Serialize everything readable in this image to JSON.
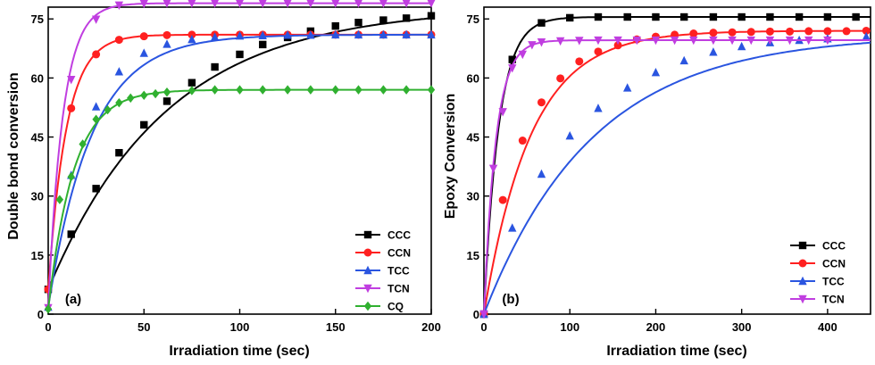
{
  "chart_data": [
    {
      "type": "line",
      "panel_label": "(a)",
      "xlabel": "Irradiation time (sec)",
      "ylabel": "Double bond conversion",
      "xlim": [
        0,
        200
      ],
      "ylim": [
        0,
        78
      ],
      "xticks": [
        0,
        50,
        100,
        150,
        200
      ],
      "yticks": [
        0,
        15,
        30,
        45,
        60,
        75
      ],
      "grid": false,
      "legend_position": "bottom-right",
      "series": [
        {
          "name": "CCC",
          "color": "#000000",
          "marker": "square",
          "k": 0.0162,
          "cmax": 78,
          "x": [
            0,
            12,
            25,
            37,
            50,
            62,
            75,
            87,
            100,
            112,
            125,
            137,
            150,
            162,
            175,
            187,
            200
          ],
          "y": [
            6.3,
            20.3,
            31.9,
            41.0,
            48.1,
            54.1,
            58.8,
            62.8,
            66.0,
            68.5,
            70.3,
            71.9,
            73.2,
            74.1,
            74.7,
            75.2,
            75.8
          ]
        },
        {
          "name": "CCN",
          "color": "#ff2020",
          "marker": "circle",
          "k": 0.105,
          "cmax": 71,
          "x": [
            0,
            12,
            25,
            37,
            50,
            62,
            75,
            87,
            100,
            112,
            125,
            137,
            150,
            162,
            175,
            187,
            200
          ],
          "y": [
            6.3,
            52.3,
            66.0,
            69.7,
            70.6,
            70.9,
            71.0,
            71.0,
            71.0,
            71.0,
            71.0,
            71.0,
            71.0,
            71.0,
            71.0,
            71.0,
            71.0
          ]
        },
        {
          "name": "TCC",
          "color": "#2a55e0",
          "marker": "triangle-up",
          "k": 0.044,
          "cmax": 71,
          "x": [
            0,
            12,
            25,
            37,
            50,
            62,
            75,
            87,
            100,
            112,
            125,
            137,
            150,
            162,
            175,
            187,
            200
          ],
          "y": [
            1.8,
            35.3,
            52.7,
            61.6,
            66.3,
            68.6,
            69.8,
            70.4,
            70.7,
            70.8,
            70.9,
            70.9,
            71.0,
            71.0,
            71.0,
            71.0,
            71.0
          ]
        },
        {
          "name": "TCN",
          "color": "#c03ee0",
          "marker": "triangle-down",
          "k": 0.13,
          "cmax": 79,
          "x": [
            0,
            12,
            25,
            37,
            50,
            62,
            75,
            87,
            100,
            112,
            125,
            137,
            150,
            162,
            175,
            187,
            200
          ],
          "y": [
            1.6,
            59.6,
            74.9,
            78.5,
            78.9,
            79.0,
            79.0,
            79.0,
            79.0,
            79.0,
            79.0,
            79.0,
            79.0,
            79.0,
            79.0,
            79.0,
            79.0
          ]
        },
        {
          "name": "CQ",
          "color": "#30b030",
          "marker": "diamond",
          "k": 0.075,
          "cmax": 57,
          "x": [
            0,
            6,
            12,
            18,
            25,
            31,
            37,
            43,
            50,
            56,
            62,
            75,
            87,
            100,
            112,
            125,
            137,
            150,
            162,
            175,
            187,
            200
          ],
          "y": [
            1.3,
            29.1,
            34.9,
            43.2,
            49.5,
            51.9,
            53.7,
            54.9,
            55.6,
            56.0,
            56.4,
            56.8,
            57.0,
            57.0,
            57.0,
            57.0,
            57.0,
            57.0,
            57.0,
            57.0,
            57.0,
            57.0
          ]
        }
      ]
    },
    {
      "type": "line",
      "panel_label": "(b)",
      "xlabel": "Irradiation time (sec)",
      "ylabel": "Epoxy Conversion",
      "xlim": [
        0,
        450
      ],
      "ylim": [
        0,
        78
      ],
      "xticks": [
        0,
        100,
        200,
        300,
        400
      ],
      "yticks": [
        0,
        15,
        30,
        45,
        60,
        75
      ],
      "grid": false,
      "legend_position": "bottom-right",
      "series": [
        {
          "name": "CCC",
          "color": "#000000",
          "marker": "square",
          "k": 0.058,
          "cmax": 75.5,
          "x": [
            0,
            33,
            67,
            100,
            133,
            167,
            200,
            233,
            267,
            300,
            333,
            367,
            400,
            433
          ],
          "y": [
            0,
            64.7,
            74.0,
            75.3,
            75.5,
            75.5,
            75.5,
            75.5,
            75.5,
            75.5,
            75.5,
            75.5,
            75.5,
            75.5
          ]
        },
        {
          "name": "CCN",
          "color": "#ff2020",
          "marker": "circle",
          "k": 0.0183,
          "cmax": 72,
          "x": [
            0,
            22,
            45,
            67,
            89,
            111,
            133,
            156,
            178,
            200,
            222,
            244,
            267,
            289,
            311,
            333,
            356,
            378,
            400,
            422,
            445
          ],
          "y": [
            0,
            29.0,
            44.1,
            53.8,
            59.9,
            64.2,
            66.7,
            68.3,
            69.8,
            70.5,
            71.0,
            71.3,
            71.5,
            71.6,
            71.7,
            71.8,
            71.8,
            71.9,
            71.9,
            71.9,
            72.0
          ]
        },
        {
          "name": "TCC",
          "color": "#2a55e0",
          "marker": "triangle-up",
          "k": 0.0079,
          "cmax": 71,
          "x": [
            0,
            33,
            67,
            100,
            133,
            167,
            200,
            233,
            267,
            300,
            333,
            367,
            400,
            445
          ],
          "y": [
            0,
            21.9,
            35.6,
            45.3,
            52.3,
            57.5,
            61.4,
            64.4,
            66.6,
            68.0,
            69.0,
            69.6,
            70.0,
            70.5
          ]
        },
        {
          "name": "TCN",
          "color": "#c03ee0",
          "marker": "triangle-down",
          "k": 0.072,
          "cmax": 69.6,
          "x": [
            0,
            11,
            22,
            33,
            45,
            56,
            67,
            89,
            111,
            133,
            156,
            178,
            200,
            222,
            244,
            267,
            289,
            311,
            333,
            356,
            378,
            400
          ],
          "y": [
            0,
            37.0,
            51.4,
            62.5,
            66.0,
            68.4,
            69.1,
            69.4,
            69.5,
            69.6,
            69.6,
            69.6,
            69.6,
            69.6,
            69.6,
            69.6,
            69.6,
            69.6,
            69.6,
            69.6,
            69.6,
            69.6
          ]
        }
      ]
    }
  ]
}
